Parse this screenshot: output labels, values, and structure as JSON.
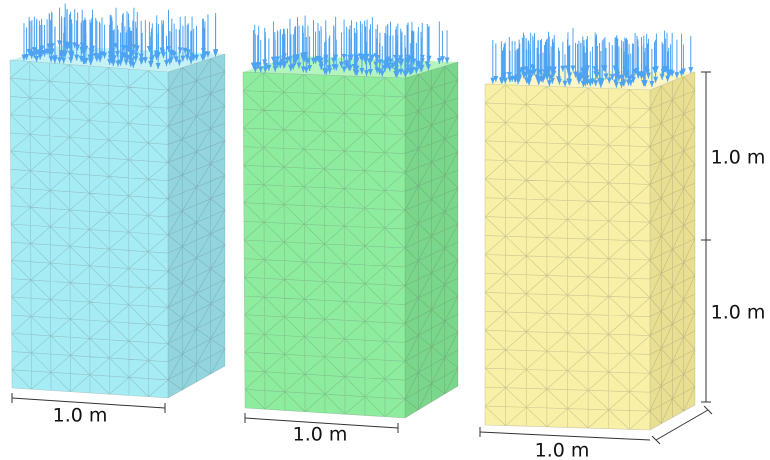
{
  "dimension_labels": [
    "1.0 m",
    "1.0 m",
    "1.0 m",
    "1.0 m",
    "1.0 m"
  ]
}
